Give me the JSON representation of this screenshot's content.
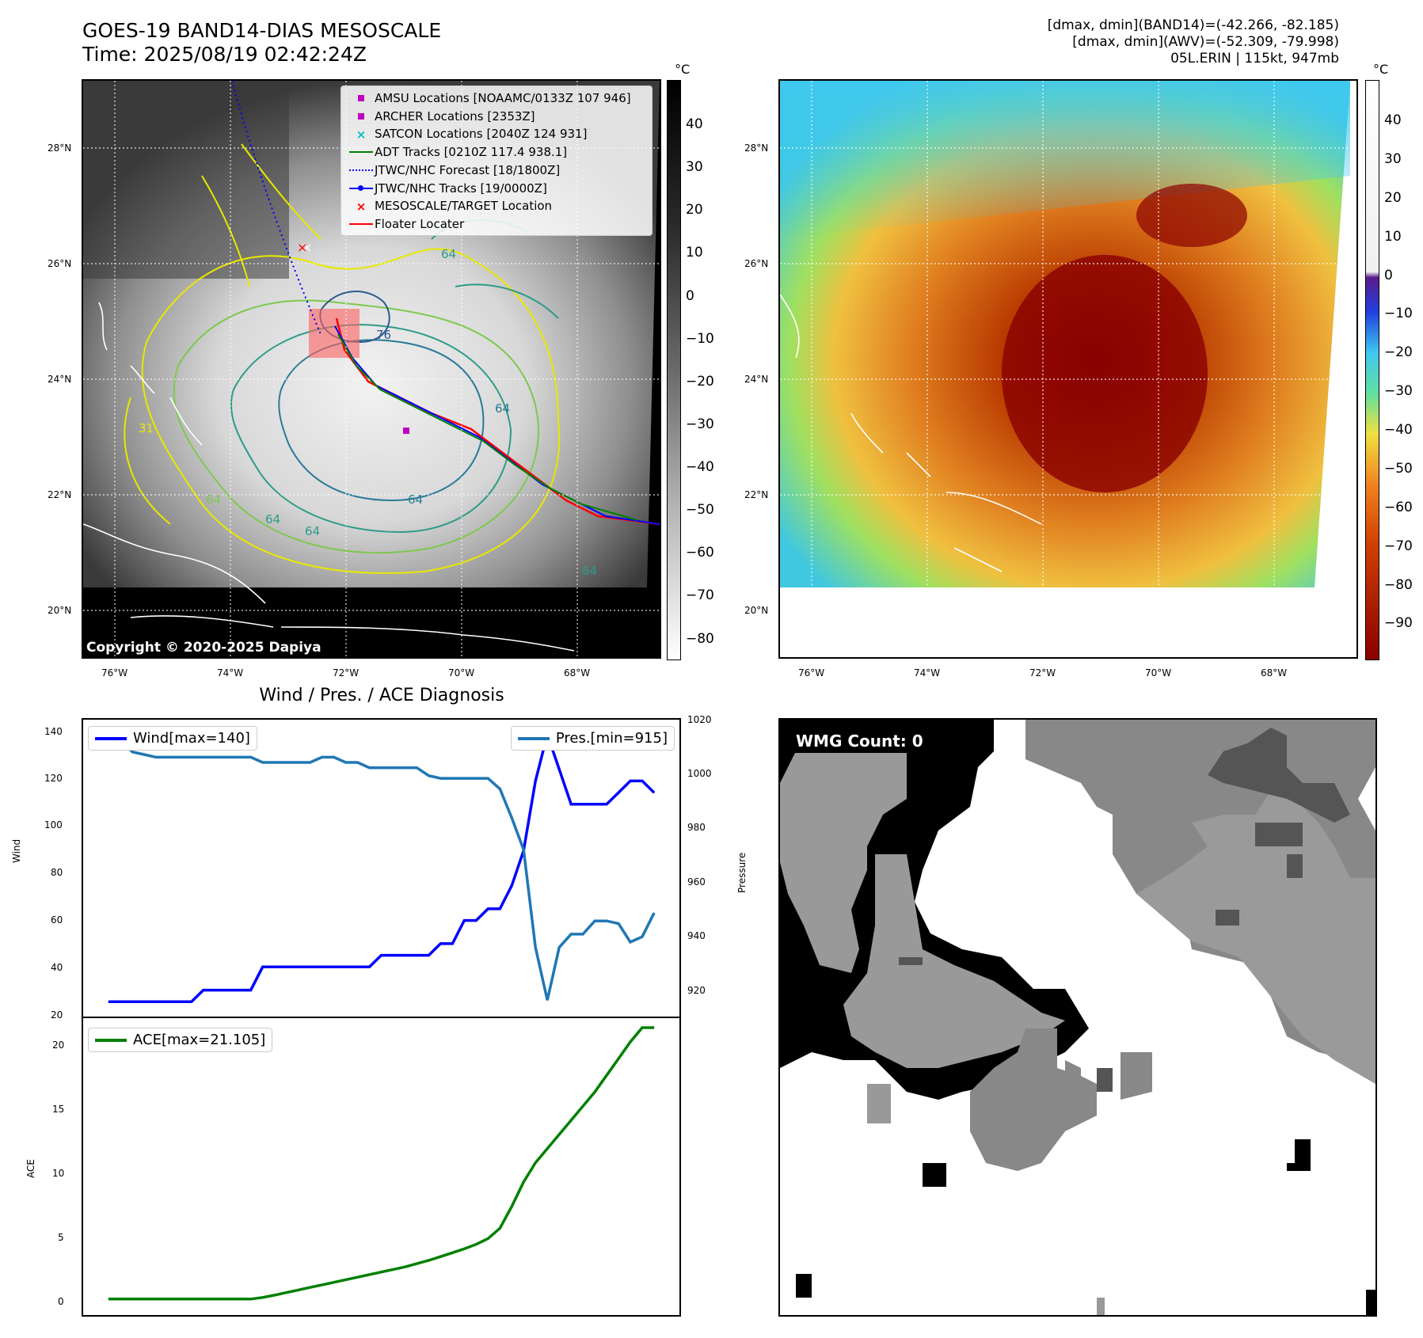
{
  "header": {
    "title_line1": "GOES-19 BAND14-DIAS MESOSCALE",
    "title_line2": "Time: 2025/08/19 02:42:24Z",
    "info_line1": "[dmax, dmin](BAND14)=(-42.266, -82.185)",
    "info_line2": "[dmax, dmin](AWV)=(-52.309, -79.998)",
    "info_line3": "05L.ERIN | 115kt, 947mb"
  },
  "map": {
    "lat_labels": [
      "28°N",
      "26°N",
      "24°N",
      "22°N",
      "20°N"
    ],
    "lon_labels": [
      "76°W",
      "74°W",
      "72°W",
      "70°W",
      "68°W"
    ],
    "copyright": "Copyright © 2020-2025 Dapiya",
    "legend": [
      {
        "label": "AMSU Locations [NOAAMC/0133Z 107 946]",
        "symbol": "square",
        "color": "#c000c0"
      },
      {
        "label": "ARCHER Locations [2353Z]",
        "symbol": "square",
        "color": "#c000c0"
      },
      {
        "label": "SATCON Locations [2040Z 124 931]",
        "symbol": "x",
        "color": "#00c0c0"
      },
      {
        "label": "ADT Tracks [0210Z 117.4 938.1]",
        "symbol": "line",
        "color": "#008000"
      },
      {
        "label": "JTWC/NHC Forecast [18/1800Z]",
        "symbol": "dotted",
        "color": "#0000ff"
      },
      {
        "label": "JTWC/NHC Tracks [19/0000Z]",
        "symbol": "line-dot",
        "color": "#0000ff"
      },
      {
        "label": "MESOSCALE/TARGET Location",
        "symbol": "x",
        "color": "#ff0000"
      },
      {
        "label": "Floater Locater",
        "symbol": "line",
        "color": "#ff0000"
      }
    ],
    "contour_labels": [
      "76",
      "64",
      "64",
      "64",
      "64",
      "64",
      "64",
      "64",
      "31"
    ]
  },
  "colorbar1": {
    "unit": "°C",
    "ticks": [
      "40",
      "30",
      "20",
      "10",
      "0",
      "−10",
      "−20",
      "−30",
      "−40",
      "−50",
      "−60",
      "−70",
      "−80"
    ]
  },
  "colorbar2": {
    "unit": "°C",
    "ticks": [
      "40",
      "30",
      "20",
      "10",
      "0",
      "−10",
      "−20",
      "−30",
      "−40",
      "−50",
      "−60",
      "−70",
      "−80",
      "−90"
    ]
  },
  "diag": {
    "title": "Wind / Pres. / ACE Diagnosis",
    "wmg": "WMG Count: 0"
  },
  "chart_data": [
    {
      "type": "line",
      "title": "Wind / Pres. / ACE Diagnosis",
      "ylabel": "Wind",
      "ylabel_right": "Pressure",
      "ylim": [
        20,
        145
      ],
      "ylim_right": [
        910,
        1020
      ],
      "yticks": [
        "140",
        "120",
        "100",
        "80",
        "60",
        "40",
        "20"
      ],
      "yticks_right": [
        "1020",
        "1000",
        "980",
        "960",
        "940",
        "920"
      ],
      "series": [
        {
          "name": "Wind[max=140]",
          "color": "#0000ff",
          "axis": "left",
          "values": [
            25,
            25,
            25,
            25,
            25,
            25,
            25,
            25,
            30,
            30,
            30,
            30,
            30,
            40,
            40,
            40,
            40,
            40,
            40,
            40,
            40,
            40,
            40,
            45,
            45,
            45,
            45,
            45,
            50,
            50,
            60,
            60,
            65,
            65,
            75,
            90,
            120,
            140,
            125,
            110,
            110,
            110,
            110,
            115,
            120,
            120,
            115
          ]
        },
        {
          "name": "Pres.[min=915]",
          "color": "#1f77b4",
          "axis": "right",
          "values": [
            1014,
            1014,
            1009,
            1008,
            1007,
            1007,
            1007,
            1007,
            1007,
            1007,
            1007,
            1007,
            1007,
            1005,
            1005,
            1005,
            1005,
            1005,
            1007,
            1007,
            1005,
            1005,
            1003,
            1003,
            1003,
            1003,
            1003,
            1000,
            999,
            999,
            999,
            999,
            999,
            995,
            984,
            972,
            935,
            915,
            935,
            940,
            940,
            945,
            945,
            944,
            937,
            939,
            948
          ]
        }
      ]
    },
    {
      "type": "line",
      "ylabel": "ACE",
      "ylim": [
        -1,
        21.6
      ],
      "yticks": [
        "20",
        "15",
        "10",
        "5",
        "0"
      ],
      "series": [
        {
          "name": "ACE[max=21.105]",
          "color": "#008000",
          "values": [
            0,
            0,
            0,
            0,
            0,
            0,
            0,
            0,
            0,
            0,
            0,
            0,
            0,
            0.12,
            0.3,
            0.5,
            0.7,
            0.9,
            1.1,
            1.3,
            1.5,
            1.7,
            1.9,
            2.1,
            2.3,
            2.5,
            2.75,
            3.0,
            3.3,
            3.6,
            3.9,
            4.25,
            4.7,
            5.5,
            7.2,
            9.1,
            10.6,
            11.7,
            12.8,
            13.9,
            15.0,
            16.1,
            17.4,
            18.7,
            20.0,
            21.105,
            21.105
          ]
        }
      ]
    }
  ]
}
